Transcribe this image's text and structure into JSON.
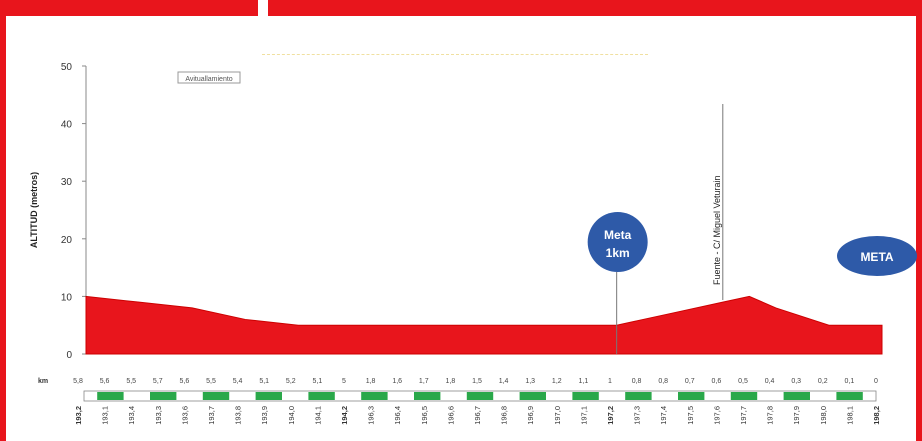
{
  "chart_data": {
    "type": "area",
    "ylabel": "ALTITUD (metros)",
    "ylim": [
      0,
      50
    ],
    "yticks": [
      0,
      10,
      20,
      30,
      40,
      50
    ],
    "legend_label": "Avituallamiento",
    "profile": {
      "x_km": [
        0,
        1,
        2,
        3,
        4,
        5,
        6,
        7,
        8,
        9,
        10,
        10.5,
        11,
        12,
        12.5,
        13,
        14,
        15
      ],
      "altitude": [
        10,
        9,
        8,
        6,
        5,
        5,
        5,
        5,
        5,
        5,
        5,
        6,
        7,
        9,
        10,
        8,
        5,
        5
      ]
    },
    "fill_color": "#e8151c",
    "annotations": [
      {
        "label_line1": "Meta",
        "label_line2": "1km",
        "x_km": 10,
        "color": "#2e5aa8"
      },
      {
        "label_line1": "META",
        "label_line2": "",
        "x_km": 15,
        "color": "#2e5aa8"
      },
      {
        "label": "Fuente - C/ Miguel Veturain",
        "x_km": 12
      }
    ],
    "km_row_label": "km",
    "km_labels": [
      "5,8",
      "5,6",
      "5,5",
      "5,7",
      "5,6",
      "5,5",
      "5,4",
      "5,1",
      "5,2",
      "5,1",
      "5",
      "1,8",
      "1,6",
      "1,7",
      "1,8",
      "1,5",
      "1,4",
      "1,3",
      "1,2",
      "1,1",
      "1",
      "0,8",
      "0,8",
      "0,7",
      "0,6",
      "0,5",
      "0,4",
      "0,3",
      "0,2",
      "0,1",
      "0"
    ],
    "segments_colors": [
      "#2aa84a",
      "#2aa84a",
      "#2aa84a",
      "#2aa84a",
      "#2aa84a",
      "#2aa84a",
      "#2aa84a",
      "#2aa84a",
      "#2aa84a",
      "#2aa84a",
      "#2aa84a",
      "#2aa84a",
      "#2aa84a",
      "#2aa84a",
      "#2aa84a"
    ],
    "distance_labels": [
      "193,2",
      "193,1",
      "193,4",
      "193,3",
      "193,6",
      "193,7",
      "193,8",
      "193,9",
      "194,0",
      "194,1",
      "194,2",
      "196,3",
      "196,4",
      "196,5",
      "196,6",
      "196,7",
      "196,8",
      "196,9",
      "197,0",
      "197,1",
      "197,2",
      "197,3",
      "197,4",
      "197,5",
      "197,6",
      "197,7",
      "197,8",
      "197,9",
      "198,0",
      "198,1",
      "198,2"
    ]
  }
}
